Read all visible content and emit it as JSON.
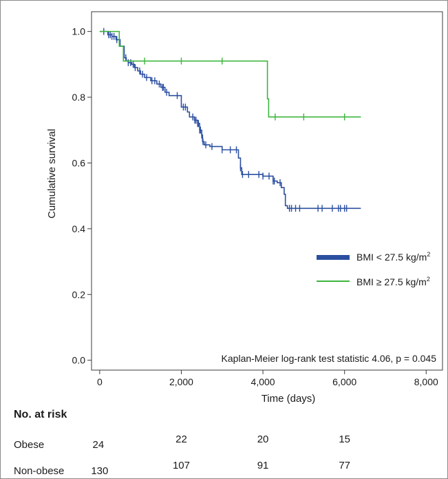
{
  "chart_data": {
    "type": "line",
    "subtype": "kaplan-meier",
    "ylabel": "Cumulative survival",
    "xlabel": "Time (days)",
    "xlim": [
      -200,
      8400
    ],
    "ylim": [
      -0.03,
      1.06
    ],
    "x_ticks": [
      0,
      2000,
      4000,
      6000,
      8000
    ],
    "x_tick_labels": [
      "0",
      "2,000",
      "4,000",
      "6,000",
      "8,000"
    ],
    "y_ticks": [
      0.0,
      0.2,
      0.4,
      0.6,
      0.8,
      1.0
    ],
    "y_tick_labels": [
      "0.0",
      "0.2",
      "0.4",
      "0.6",
      "0.8",
      "1.0"
    ],
    "grid": false,
    "legend_position": "right",
    "annotation": "Kaplan-Meier log-rank test statistic 4.06, p = 0.045",
    "series": [
      {
        "name": "BMI < 27.5 kg/m2",
        "legend_main": "BMI < 27.5 kg/m",
        "legend_sup": "2",
        "color": "#2b4fa0",
        "steps": [
          [
            0,
            1.0
          ],
          [
            200,
            0.99
          ],
          [
            300,
            0.985
          ],
          [
            400,
            0.975
          ],
          [
            500,
            0.955
          ],
          [
            600,
            0.92
          ],
          [
            650,
            0.91
          ],
          [
            700,
            0.905
          ],
          [
            780,
            0.9
          ],
          [
            850,
            0.89
          ],
          [
            930,
            0.88
          ],
          [
            1000,
            0.87
          ],
          [
            1100,
            0.86
          ],
          [
            1250,
            0.85
          ],
          [
            1400,
            0.84
          ],
          [
            1500,
            0.83
          ],
          [
            1600,
            0.815
          ],
          [
            1700,
            0.805
          ],
          [
            2000,
            0.77
          ],
          [
            2150,
            0.755
          ],
          [
            2200,
            0.74
          ],
          [
            2320,
            0.73
          ],
          [
            2400,
            0.72
          ],
          [
            2450,
            0.7
          ],
          [
            2500,
            0.685
          ],
          [
            2520,
            0.665
          ],
          [
            2560,
            0.655
          ],
          [
            2700,
            0.65
          ],
          [
            3000,
            0.64
          ],
          [
            3400,
            0.615
          ],
          [
            3450,
            0.585
          ],
          [
            3480,
            0.565
          ],
          [
            3600,
            0.565
          ],
          [
            4000,
            0.56
          ],
          [
            4250,
            0.545
          ],
          [
            4350,
            0.54
          ],
          [
            4450,
            0.525
          ],
          [
            4520,
            0.505
          ],
          [
            4550,
            0.47
          ],
          [
            4600,
            0.462
          ],
          [
            6400,
            0.462
          ]
        ],
        "censor_x": [
          100,
          220,
          260,
          300,
          350,
          420,
          480,
          640,
          700,
          760,
          820,
          870,
          980,
          1050,
          1150,
          1280,
          1350,
          1460,
          1540,
          1560,
          1640,
          1900,
          2050,
          2100,
          2280,
          2330,
          2360,
          2400,
          2410,
          2420,
          2450,
          2470,
          2500,
          2530,
          2600,
          2750,
          3000,
          3200,
          3350,
          3450,
          3500,
          3650,
          3900,
          4000,
          4150,
          4250,
          4280,
          4420,
          4650,
          4700,
          4800,
          4900,
          5350,
          5450,
          5700,
          5850,
          5900,
          6000,
          6050
        ]
      },
      {
        "name": "BMI ≥ 27.5 kg/m2",
        "legend_main": "BMI ≥ 27.5 kg/m",
        "legend_sup": "2",
        "color": "#3db53d",
        "steps": [
          [
            0,
            1.0
          ],
          [
            480,
            0.955
          ],
          [
            580,
            0.91
          ],
          [
            4100,
            0.91
          ],
          [
            4110,
            0.795
          ],
          [
            4140,
            0.74
          ],
          [
            6400,
            0.74
          ]
        ],
        "censor_x": [
          1100,
          2000,
          3000,
          4300,
          5000,
          6000
        ]
      }
    ]
  },
  "risk_table": {
    "title": "No. at risk",
    "rows": [
      {
        "label": "Obese",
        "values": [
          "24",
          "22",
          "20",
          "15"
        ]
      },
      {
        "label": "Non-obese",
        "values": [
          "130",
          "107",
          "91",
          "77"
        ]
      }
    ]
  }
}
